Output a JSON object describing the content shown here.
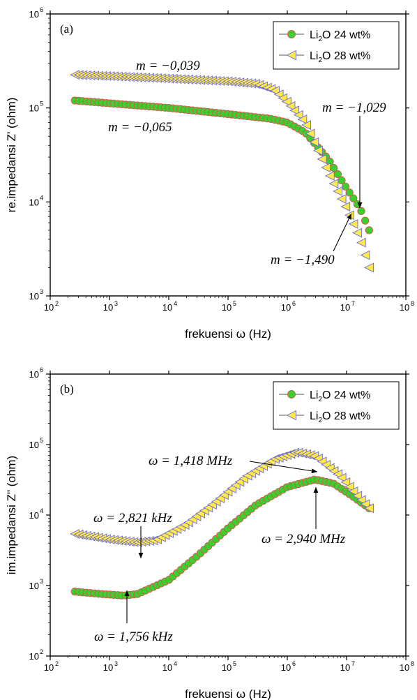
{
  "chart_data": [
    {
      "type": "scatter",
      "panel_label": "(a)",
      "xlabel": "frekuensi  ω  (Hz)",
      "ylabel": "re.impedansi  Z' (ohm)",
      "xscale": "log",
      "yscale": "log",
      "xlim": [
        100,
        100000000
      ],
      "ylim": [
        1000,
        1000000
      ],
      "x_tick_exponents": [
        2,
        3,
        4,
        5,
        6,
        7,
        8
      ],
      "y_tick_exponents": [
        3,
        4,
        5,
        6
      ],
      "tick_base": "10",
      "grid": false,
      "legend_position": "top-right",
      "series": [
        {
          "name": "Li2O 24 wt%",
          "legend_main": "Li",
          "legend_sub": "2",
          "legend_rest": "O 24 wt%",
          "marker": "circle",
          "fill": "#3ad12e",
          "edge": "#d9534f",
          "x_range": [
            260,
            24000000
          ],
          "points": [
            [
              260,
              120000
            ],
            [
              1000,
              112000
            ],
            [
              10000,
              100000
            ],
            [
              100000,
              86000
            ],
            [
              500000,
              77000
            ],
            [
              1000000,
              70000
            ],
            [
              2000000,
              55000
            ],
            [
              5000000,
              28000
            ],
            [
              10000000,
              14000
            ],
            [
              17000000,
              8500
            ],
            [
              24000000,
              5000
            ]
          ]
        },
        {
          "name": "Li2O 28 wt%",
          "legend_main": "Li",
          "legend_sub": "2",
          "legend_rest": "O 28 wt%",
          "marker": "triangle-left",
          "fill": "#ffe94a",
          "edge": "#6a6ad8",
          "x_range": [
            260,
            24000000
          ],
          "points": [
            [
              260,
              225000
            ],
            [
              1000,
              218000
            ],
            [
              10000,
              205000
            ],
            [
              100000,
              192000
            ],
            [
              300000,
              180000
            ],
            [
              600000,
              155000
            ],
            [
              1000000,
              115000
            ],
            [
              2000000,
              70000
            ],
            [
              5000000,
              20000
            ],
            [
              10000000,
              8500
            ],
            [
              17000000,
              4000
            ],
            [
              24000000,
              2000
            ]
          ]
        }
      ],
      "annotations": [
        {
          "text": "m = −0,039",
          "x": 1000000,
          "y": 1000000
        },
        {
          "text": "m = −0,065",
          "x": 1000000,
          "y": 1000000
        },
        {
          "text": "m = −1,029",
          "x": 1000000,
          "y": 1000000
        },
        {
          "text": "m = −1,490",
          "x": 1000000,
          "y": 1000000
        }
      ],
      "annotation_texts": [
        "m = −0,039",
        "m = −0,065",
        "m = −1,029",
        "m = −1,490"
      ]
    },
    {
      "type": "scatter",
      "panel_label": "(b)",
      "xlabel": "frekuensi  ω  (Hz)",
      "ylabel": "im.impedansi  Z\" (ohm)",
      "xscale": "log",
      "yscale": "log",
      "xlim": [
        100,
        100000000
      ],
      "ylim": [
        100,
        1000000
      ],
      "x_tick_exponents": [
        2,
        3,
        4,
        5,
        6,
        7,
        8
      ],
      "y_tick_exponents": [
        2,
        3,
        4,
        5,
        6
      ],
      "tick_base": "10",
      "grid": false,
      "legend_position": "top-right",
      "series": [
        {
          "name": "Li2O 24 wt%",
          "legend_main": "Li",
          "legend_sub": "2",
          "legend_rest": "O 24 wt%",
          "marker": "circle",
          "fill": "#3ad12e",
          "edge": "#d9534f",
          "x_range": [
            260,
            24000000
          ],
          "points": [
            [
              260,
              820
            ],
            [
              700,
              760
            ],
            [
              1756,
              720
            ],
            [
              3000,
              760
            ],
            [
              10000,
              1200
            ],
            [
              30000,
              2600
            ],
            [
              100000,
              6500
            ],
            [
              300000,
              14000
            ],
            [
              1000000,
              25000
            ],
            [
              2940000,
              32000
            ],
            [
              6000000,
              28000
            ],
            [
              12000000,
              19000
            ],
            [
              24000000,
              12500
            ]
          ]
        },
        {
          "name": "Li2O 28 wt%",
          "legend_main": "Li",
          "legend_sub": "2",
          "legend_rest": "O 28 wt%",
          "marker": "triangle-left",
          "fill": "#ffe94a",
          "edge": "#6a6ad8",
          "x_range": [
            260,
            24000000
          ],
          "points": [
            [
              260,
              5400
            ],
            [
              1000,
              4500
            ],
            [
              2821,
              4100
            ],
            [
              6000,
              4400
            ],
            [
              20000,
              7500
            ],
            [
              60000,
              15000
            ],
            [
              200000,
              35000
            ],
            [
              600000,
              62000
            ],
            [
              1418000,
              78000
            ],
            [
              3000000,
              68000
            ],
            [
              8000000,
              35000
            ],
            [
              15000000,
              19000
            ],
            [
              24000000,
              12500
            ]
          ]
        }
      ],
      "annotations": [
        {
          "text": "ω = 1,418 MHz",
          "x": 1418000,
          "y": 78000
        },
        {
          "text": "ω = 2,821 kHz",
          "x": 2821,
          "y": 4100
        },
        {
          "text": "ω = 2,940 MHz",
          "x": 2940000,
          "y": 32000
        },
        {
          "text": "ω = 1,756 kHz",
          "x": 1756,
          "y": 720
        }
      ],
      "annotation_texts": [
        "ω = 1,418 MHz",
        "ω = 2,821 kHz",
        "ω = 2,940 MHz",
        "ω = 1,756 kHz"
      ]
    }
  ]
}
